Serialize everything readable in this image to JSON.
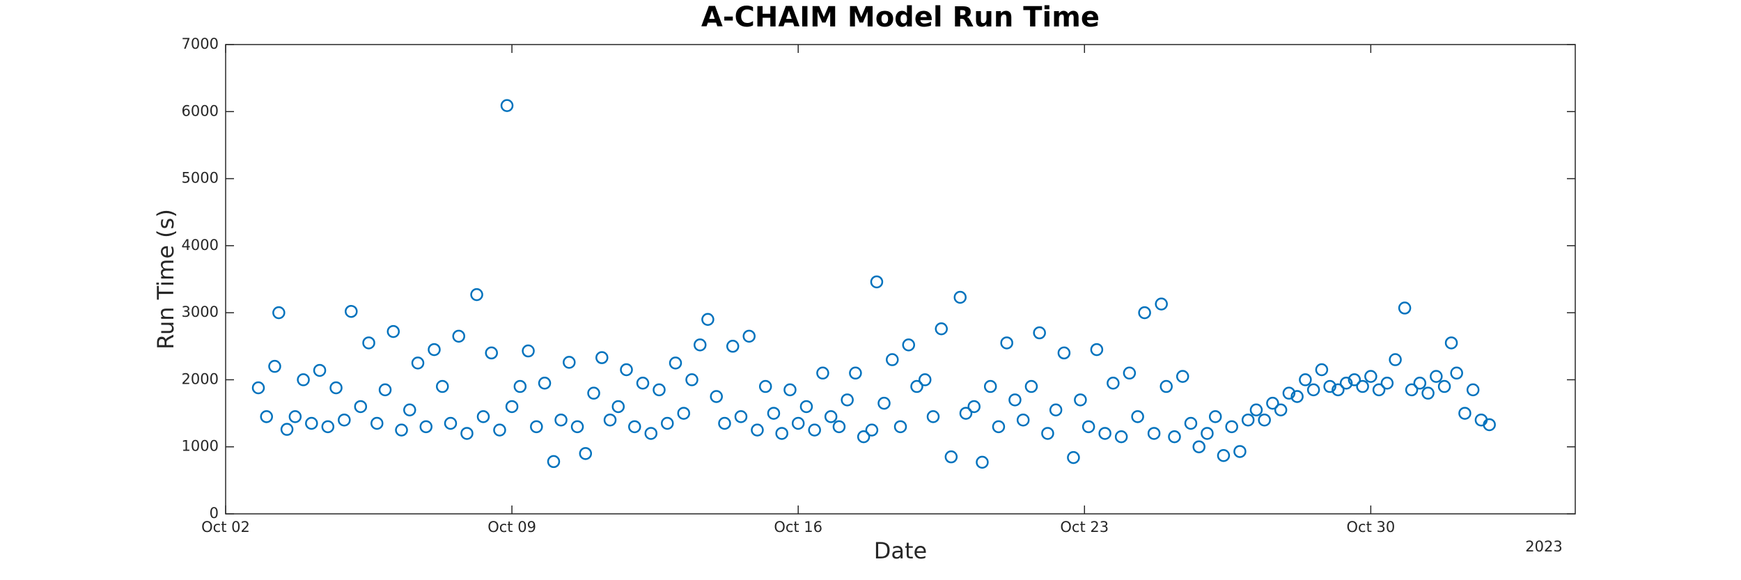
{
  "chart_data": {
    "type": "scatter",
    "title": "A-CHAIM Model Run Time",
    "xlabel": "Date",
    "ylabel": "Run Time (s)",
    "x_year_label": "2023",
    "color": "#0072BD",
    "xlim": [
      0,
      33
    ],
    "ylim": [
      0,
      7000
    ],
    "xticks": [
      {
        "value": 0,
        "label": "Oct 02"
      },
      {
        "value": 7,
        "label": "Oct 09"
      },
      {
        "value": 14,
        "label": "Oct 16"
      },
      {
        "value": 21,
        "label": "Oct 23"
      },
      {
        "value": 28,
        "label": "Oct 30"
      }
    ],
    "yticks": [
      0,
      1000,
      2000,
      3000,
      4000,
      5000,
      6000,
      7000
    ],
    "x": [
      0.8,
      1.0,
      1.2,
      1.3,
      1.5,
      1.7,
      1.9,
      2.1,
      2.3,
      2.5,
      2.7,
      2.9,
      3.07,
      3.3,
      3.5,
      3.7,
      3.9,
      4.1,
      4.3,
      4.5,
      4.7,
      4.9,
      5.1,
      5.3,
      5.5,
      5.7,
      5.9,
      6.14,
      6.3,
      6.5,
      6.7,
      6.88,
      7.0,
      7.2,
      7.4,
      7.6,
      7.8,
      8.02,
      8.2,
      8.4,
      8.6,
      8.8,
      9.0,
      9.2,
      9.4,
      9.6,
      9.8,
      10.0,
      10.2,
      10.4,
      10.6,
      10.8,
      11.0,
      11.2,
      11.4,
      11.6,
      11.79,
      12.0,
      12.2,
      12.4,
      12.6,
      12.8,
      13.0,
      13.2,
      13.4,
      13.6,
      13.8,
      14.0,
      14.2,
      14.4,
      14.6,
      14.8,
      15.0,
      15.2,
      15.4,
      15.6,
      15.8,
      15.92,
      16.1,
      16.3,
      16.5,
      16.7,
      16.9,
      17.1,
      17.3,
      17.5,
      17.74,
      17.96,
      18.1,
      18.3,
      18.5,
      18.7,
      18.9,
      19.1,
      19.3,
      19.5,
      19.7,
      19.9,
      20.1,
      20.3,
      20.5,
      20.73,
      20.9,
      21.1,
      21.3,
      21.5,
      21.7,
      21.9,
      22.1,
      22.3,
      22.47,
      22.7,
      22.88,
      23.0,
      23.2,
      23.4,
      23.6,
      23.8,
      24.0,
      24.2,
      24.4,
      24.6,
      24.8,
      25.0,
      25.2,
      25.4,
      25.6,
      25.8,
      26.0,
      26.2,
      26.4,
      26.6,
      26.8,
      27.0,
      27.2,
      27.4,
      27.6,
      27.8,
      28.0,
      28.2,
      28.4,
      28.6,
      28.83,
      29.0,
      29.2,
      29.4,
      29.6,
      29.8,
      29.97,
      30.1,
      30.3,
      30.5,
      30.7,
      30.9
    ],
    "values": [
      1880,
      1450,
      2200,
      3000,
      1260,
      1450,
      2000,
      1350,
      2140,
      1300,
      1880,
      1400,
      3020,
      1600,
      2550,
      1350,
      1850,
      2720,
      1250,
      1550,
      2250,
      1300,
      2450,
      1900,
      1350,
      2650,
      1200,
      3270,
      1450,
      2400,
      1250,
      6090,
      1600,
      1900,
      2430,
      1300,
      1950,
      780,
      1400,
      2260,
      1300,
      900,
      1800,
      2330,
      1400,
      1600,
      2150,
      1300,
      1950,
      1200,
      1850,
      1350,
      2250,
      1500,
      2000,
      2520,
      2900,
      1750,
      1350,
      2500,
      1450,
      2650,
      1250,
      1900,
      1500,
      1200,
      1850,
      1350,
      1600,
      1250,
      2100,
      1450,
      1300,
      1700,
      2100,
      1150,
      1250,
      3460,
      1650,
      2300,
      1300,
      2520,
      1900,
      2000,
      1450,
      2760,
      850,
      3230,
      1500,
      1600,
      770,
      1900,
      1300,
      2550,
      1700,
      1400,
      1900,
      2700,
      1200,
      1550,
      2400,
      840,
      1700,
      1300,
      2450,
      1200,
      1950,
      1150,
      2100,
      1450,
      3000,
      1200,
      3130,
      1900,
      1150,
      2050,
      1350,
      1000,
      1200,
      1450,
      870,
      1300,
      930,
      1400,
      1550,
      1400,
      1650,
      1550,
      1800,
      1750,
      2000,
      1850,
      2150,
      1900,
      1850,
      1950,
      2000,
      1900,
      2050,
      1850,
      1950,
      2300,
      3070,
      1850,
      1950,
      1800,
      2050,
      1900,
      2550,
      2100,
      1500,
      1850,
      1400,
      1330
    ]
  }
}
